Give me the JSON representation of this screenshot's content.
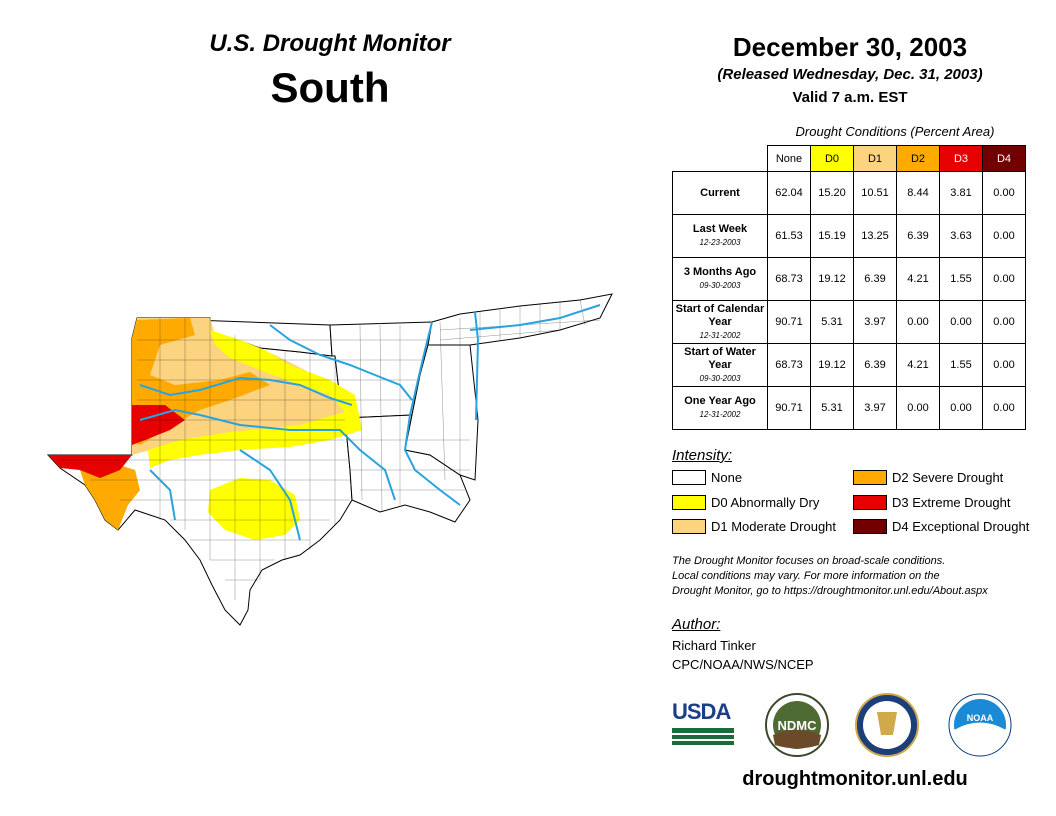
{
  "title": "U.S. Drought Monitor",
  "region": "South",
  "date": "December 30, 2003",
  "released": "(Released Wednesday, Dec. 31, 2003)",
  "valid": "Valid 7 a.m. EST",
  "table": {
    "caption": "Drought Conditions (Percent Area)",
    "columns": [
      "None",
      "D0",
      "D1",
      "D2",
      "D3",
      "D4"
    ],
    "column_colors": [
      "#ffffff",
      "#ffff00",
      "#fcd37f",
      "#ffaa00",
      "#e60000",
      "#730000"
    ],
    "rows": [
      {
        "label": "Current",
        "sub": "",
        "values": [
          "62.04",
          "15.20",
          "10.51",
          "8.44",
          "3.81",
          "0.00"
        ]
      },
      {
        "label": "Last Week",
        "sub": "12-23-2003",
        "values": [
          "61.53",
          "15.19",
          "13.25",
          "6.39",
          "3.63",
          "0.00"
        ]
      },
      {
        "label": "3 Months Ago",
        "sub": "09-30-2003",
        "values": [
          "68.73",
          "19.12",
          "6.39",
          "4.21",
          "1.55",
          "0.00"
        ]
      },
      {
        "label": "Start of Calendar Year",
        "sub": "12-31-2002",
        "values": [
          "90.71",
          "5.31",
          "3.97",
          "0.00",
          "0.00",
          "0.00"
        ]
      },
      {
        "label": "Start of Water Year",
        "sub": "09-30-2003",
        "values": [
          "68.73",
          "19.12",
          "6.39",
          "4.21",
          "1.55",
          "0.00"
        ]
      },
      {
        "label": "One Year Ago",
        "sub": "12-31-2002",
        "values": [
          "90.71",
          "5.31",
          "3.97",
          "0.00",
          "0.00",
          "0.00"
        ]
      }
    ]
  },
  "legend": {
    "title": "Intensity:",
    "items": [
      {
        "label": "None",
        "color": "#ffffff"
      },
      {
        "label": "D0 Abnormally Dry",
        "color": "#ffff00"
      },
      {
        "label": "D1 Moderate Drought",
        "color": "#fcd37f"
      },
      {
        "label": "D2 Severe Drought",
        "color": "#ffaa00"
      },
      {
        "label": "D3 Extreme Drought",
        "color": "#e60000"
      },
      {
        "label": "D4 Exceptional Drought",
        "color": "#730000"
      }
    ]
  },
  "note": [
    "The Drought Monitor focuses on broad-scale conditions.",
    "Local conditions may vary. For more information on the",
    "Drought Monitor, go to https://droughtmonitor.unl.edu/About.aspx"
  ],
  "author": {
    "title": "Author:",
    "name": "Richard Tinker",
    "org": "CPC/NOAA/NWS/NCEP"
  },
  "logos": {
    "usda": "USDA",
    "ndmc": "NDMC",
    "noaa": "NOAA"
  },
  "website": "droughtmonitor.unl.edu"
}
